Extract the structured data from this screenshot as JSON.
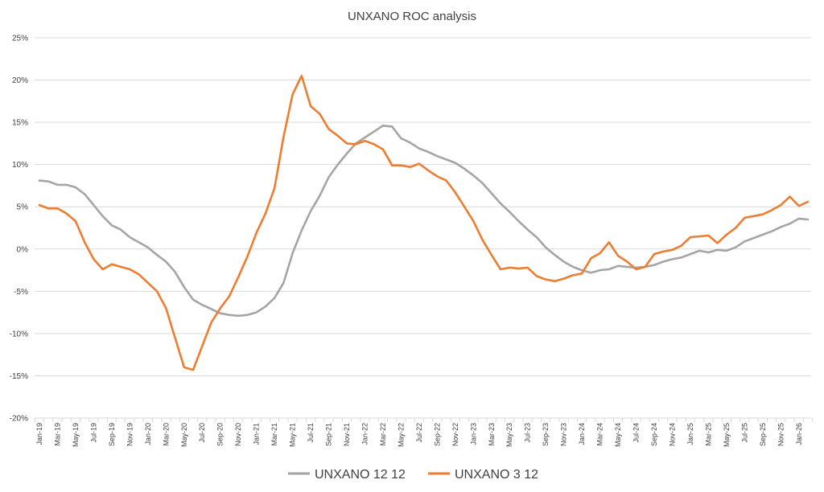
{
  "chart_data": {
    "type": "line",
    "title": "UNXANO ROC analysis",
    "xlabel": "",
    "ylabel": "",
    "ylim": [
      -20,
      25
    ],
    "ytick_step": 5,
    "ytick_suffix": "%",
    "grid": true,
    "legend_position": "bottom",
    "x_labels": [
      "Jan-19",
      "Mar-19",
      "May-19",
      "Jul-19",
      "Sep-19",
      "Nov-19",
      "Jan-20",
      "Mar-20",
      "May-20",
      "Jul-20",
      "Sep-20",
      "Nov-20",
      "Jan-21",
      "Mar-21",
      "May-21",
      "Jul-21",
      "Sep-21",
      "Nov-21",
      "Jan-22",
      "Mar-22",
      "May-22",
      "Jul-22",
      "Sep-22",
      "Nov-22",
      "Jan-23",
      "Mar-23",
      "May-23",
      "Jul-23",
      "Sep-23",
      "Nov-23",
      "Jan-24",
      "Mar-24",
      "May-24",
      "Jul-24",
      "Sep-24",
      "Nov-24",
      "Jan-25",
      "Mar-25",
      "May-25",
      "Jul-25",
      "Sep-25",
      "Nov-25",
      "Jan-26"
    ],
    "series": [
      {
        "name": "UNXANO 12 12",
        "color": "#a5a5a5",
        "values": [
          8.1,
          8.0,
          7.6,
          7.6,
          7.3,
          6.5,
          5.2,
          3.9,
          2.8,
          2.3,
          1.4,
          0.8,
          0.2,
          -0.7,
          -1.5,
          -2.7,
          -4.5,
          -6.0,
          -6.6,
          -7.1,
          -7.6,
          -7.8,
          -7.9,
          -7.8,
          -7.5,
          -6.8,
          -5.8,
          -4.0,
          -0.5,
          2.2,
          4.5,
          6.3,
          8.5,
          10.0,
          11.3,
          12.5,
          13.2,
          13.9,
          14.6,
          14.5,
          13.1,
          12.6,
          11.9,
          11.5,
          11.0,
          10.6,
          10.2,
          9.5,
          8.7,
          7.8,
          6.6,
          5.4,
          4.4,
          3.3,
          2.3,
          1.4,
          0.2,
          -0.7,
          -1.5,
          -2.1,
          -2.5,
          -2.8,
          -2.5,
          -2.4,
          -2.0,
          -2.1,
          -2.2,
          -2.1,
          -1.9,
          -1.5,
          -1.2,
          -1.0,
          -0.6,
          -0.2,
          -0.4,
          -0.1,
          -0.2,
          0.2,
          0.9,
          1.3,
          1.7,
          2.1,
          2.6,
          3.0,
          3.6,
          3.5
        ]
      },
      {
        "name": "UNXANO 3 12",
        "color": "#ed7d31",
        "values": [
          5.2,
          4.8,
          4.8,
          4.2,
          3.3,
          0.8,
          -1.2,
          -2.4,
          -1.8,
          -2.1,
          -2.4,
          -3.0,
          -4.0,
          -5.0,
          -7.0,
          -10.5,
          -14.0,
          -14.3,
          -11.5,
          -8.7,
          -7.0,
          -5.6,
          -3.3,
          -0.9,
          1.9,
          4.2,
          7.2,
          13.3,
          18.3,
          20.5,
          16.9,
          16.0,
          14.2,
          13.4,
          12.5,
          12.4,
          12.8,
          12.4,
          11.8,
          9.9,
          9.9,
          9.7,
          10.1,
          9.3,
          8.6,
          8.1,
          6.7,
          5.0,
          3.3,
          1.1,
          -0.7,
          -2.4,
          -2.2,
          -2.3,
          -2.2,
          -3.2,
          -3.6,
          -3.8,
          -3.5,
          -3.1,
          -2.9,
          -1.1,
          -0.5,
          0.8,
          -0.8,
          -1.5,
          -2.4,
          -2.1,
          -0.6,
          -0.3,
          -0.1,
          0.4,
          1.4,
          1.5,
          1.6,
          0.7,
          1.7,
          2.5,
          3.7,
          3.9,
          4.1,
          4.6,
          5.2,
          6.2,
          5.1,
          5.6
        ]
      }
    ]
  }
}
